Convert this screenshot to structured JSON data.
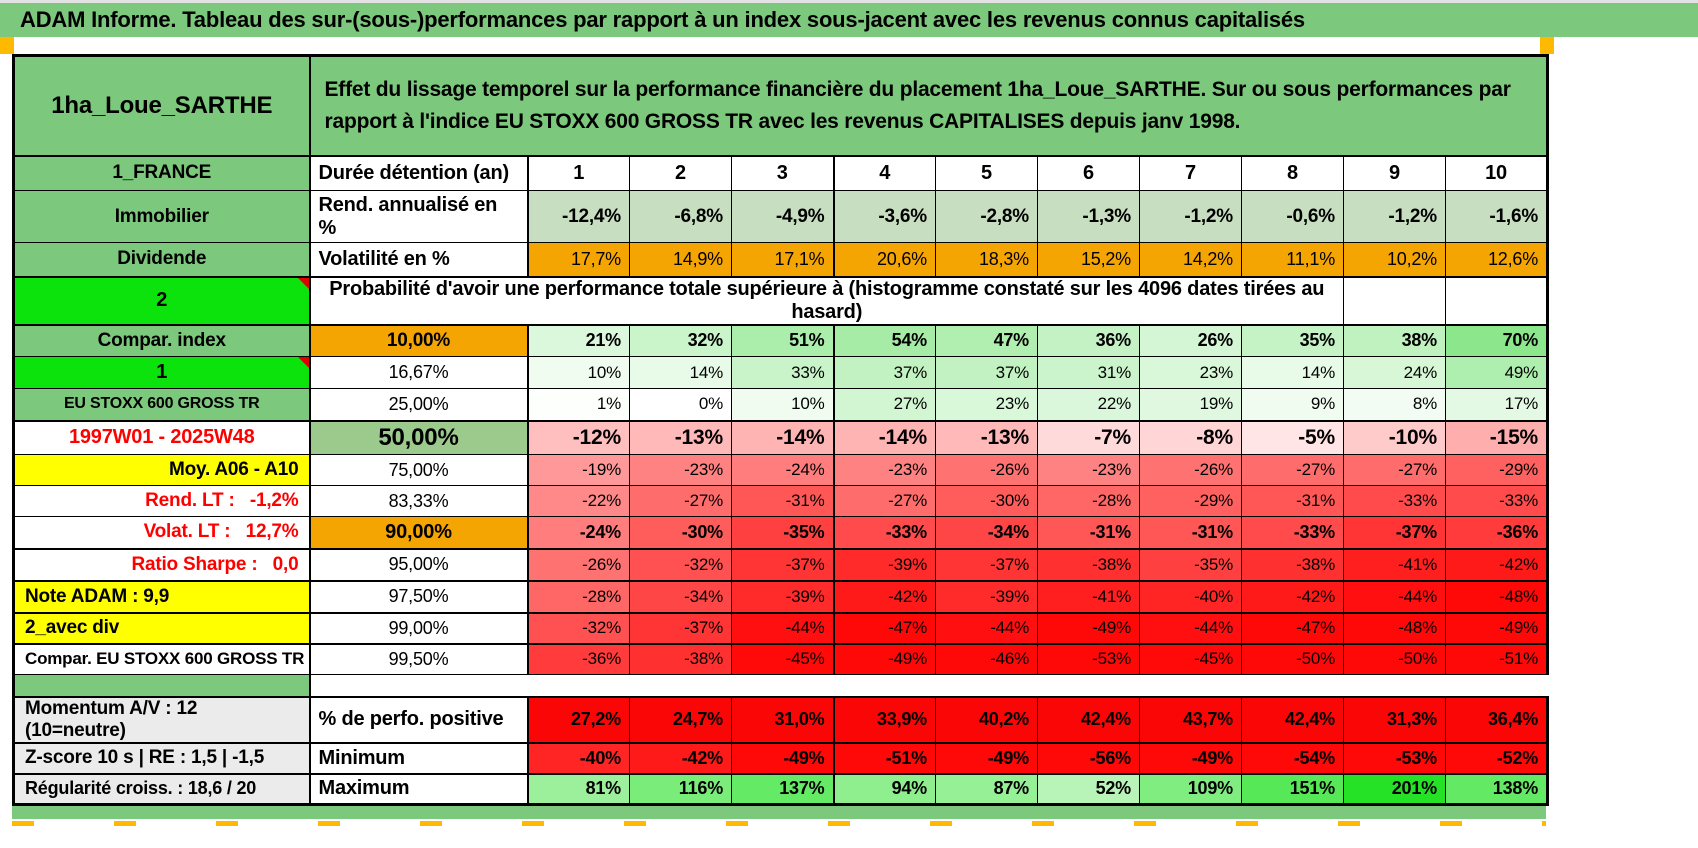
{
  "title": "ADAM Informe. Tableau des sur-(sous-)performances par rapport à un index sous-jacent avec les revenus connus capitalisés",
  "header": {
    "name": "1ha_Loue_SARTHE",
    "description": "Effet du lissage temporel sur la performance financière du placement 1ha_Loue_SARTHE. Sur ou sous performances par rapport à l'indice EU STOXX 600 GROSS TR avec les revenus CAPITALISES depuis janv 1998."
  },
  "columns": [
    "1",
    "2",
    "3",
    "4",
    "5",
    "6",
    "7",
    "8",
    "9",
    "10"
  ],
  "table": {
    "rows": [
      {
        "id": "duree",
        "a": "1_FRANCE",
        "b": "Durée détention (an)",
        "cells": [
          "1",
          "2",
          "3",
          "4",
          "5",
          "6",
          "7",
          "8",
          "9",
          "10"
        ]
      },
      {
        "id": "rend",
        "a": "Immobilier",
        "b": "Rend. annualisé en %",
        "cells": [
          "-12,4%",
          "-6,8%",
          "-4,9%",
          "-3,6%",
          "-2,8%",
          "-1,3%",
          "-1,2%",
          "-0,6%",
          "-1,2%",
          "-1,6%"
        ]
      },
      {
        "id": "volat",
        "a": "Dividende",
        "b": "Volatilité en %",
        "cells": [
          "17,7%",
          "14,9%",
          "17,1%",
          "20,6%",
          "18,3%",
          "15,2%",
          "14,2%",
          "11,1%",
          "10,2%",
          "12,6%"
        ]
      },
      {
        "id": "prob",
        "a": "2",
        "merged_text": "Probabilité d'avoir une performance totale supérieure à (histogramme constaté sur les 4096 dates tirées au hasard)",
        "tail_empty": 2
      },
      {
        "id": "p10",
        "a": "Compar. index",
        "b": "10,00%",
        "cells": [
          "21%",
          "32%",
          "51%",
          "54%",
          "47%",
          "36%",
          "26%",
          "35%",
          "38%",
          "70%"
        ]
      },
      {
        "id": "p1667",
        "a": "1",
        "b": "16,67%",
        "cells": [
          "10%",
          "14%",
          "33%",
          "37%",
          "37%",
          "31%",
          "23%",
          "14%",
          "24%",
          "49%"
        ]
      },
      {
        "id": "p25",
        "a": "EU STOXX 600 GROSS TR",
        "b": "25,00%",
        "cells": [
          "1%",
          "0%",
          "10%",
          "27%",
          "23%",
          "22%",
          "19%",
          "9%",
          "8%",
          "17%"
        ]
      },
      {
        "id": "p50",
        "a": "1997W01 - 2025W48",
        "b": "50,00%",
        "cells": [
          "-12%",
          "-13%",
          "-14%",
          "-14%",
          "-13%",
          "-7%",
          "-8%",
          "-5%",
          "-10%",
          "-15%"
        ]
      },
      {
        "id": "p75",
        "a": "Moy. A06 - A10",
        "b": "75,00%",
        "cells": [
          "-19%",
          "-23%",
          "-24%",
          "-23%",
          "-26%",
          "-23%",
          "-26%",
          "-27%",
          "-27%",
          "-29%"
        ]
      },
      {
        "id": "p8333",
        "a": "Rend. LT :   -1,2%",
        "b": "83,33%",
        "cells": [
          "-22%",
          "-27%",
          "-31%",
          "-27%",
          "-30%",
          "-28%",
          "-29%",
          "-31%",
          "-33%",
          "-33%"
        ]
      },
      {
        "id": "p90",
        "a": "Volat. LT :   12,7%",
        "b": "90,00%",
        "cells": [
          "-24%",
          "-30%",
          "-35%",
          "-33%",
          "-34%",
          "-31%",
          "-31%",
          "-33%",
          "-37%",
          "-36%"
        ]
      },
      {
        "id": "p95",
        "a": "Ratio Sharpe :   0,0",
        "b": "95,00%",
        "cells": [
          "-26%",
          "-32%",
          "-37%",
          "-39%",
          "-37%",
          "-38%",
          "-35%",
          "-38%",
          "-41%",
          "-42%"
        ]
      },
      {
        "id": "p975",
        "a": "Note ADAM : 9,9",
        "b": "97,50%",
        "cells": [
          "-28%",
          "-34%",
          "-39%",
          "-42%",
          "-39%",
          "-41%",
          "-40%",
          "-42%",
          "-44%",
          "-48%"
        ]
      },
      {
        "id": "p99",
        "a": "2_avec div",
        "b": "99,00%",
        "cells": [
          "-32%",
          "-37%",
          "-44%",
          "-47%",
          "-44%",
          "-49%",
          "-44%",
          "-47%",
          "-48%",
          "-49%"
        ]
      },
      {
        "id": "p995",
        "a": "Compar. EU STOXX 600 GROSS TR",
        "b": "99,50%",
        "cells": [
          "-36%",
          "-38%",
          "-45%",
          "-49%",
          "-46%",
          "-53%",
          "-45%",
          "-50%",
          "-50%",
          "-51%"
        ]
      },
      {
        "id": "sep",
        "a": ""
      },
      {
        "id": "perfo",
        "a": "Momentum A/V : 12 (10=neutre)",
        "b": "% de perfo. positive",
        "cells": [
          "27,2%",
          "24,7%",
          "31,0%",
          "33,9%",
          "40,2%",
          "42,4%",
          "43,7%",
          "42,4%",
          "31,3%",
          "36,4%"
        ]
      },
      {
        "id": "min",
        "a": "Z-score 10 s | RE : 1,5 | -1,5",
        "b": "Minimum",
        "cells": [
          "-40%",
          "-42%",
          "-49%",
          "-51%",
          "-49%",
          "-56%",
          "-49%",
          "-54%",
          "-53%",
          "-52%"
        ]
      },
      {
        "id": "max",
        "a": "Régularité croiss. : 18,6 / 20",
        "b": "Maximum",
        "cells": [
          "81%",
          "116%",
          "137%",
          "94%",
          "87%",
          "52%",
          "109%",
          "151%",
          "201%",
          "138%"
        ]
      }
    ]
  },
  "colors": {
    "header_green": "#7cc87c",
    "label_green": "#7cc87c",
    "bright_green": "#0ce30c",
    "sage_green": "#9cc98c",
    "rend_green": "#c8dec0",
    "orange": "#f5a502",
    "yellow": "#ffff00",
    "gray": "#ebebeb",
    "red_flat": "#fa0606",
    "red_text": "#ff0000",
    "note_marker_red": "#e00000",
    "corner_orange": "#ffb900"
  }
}
